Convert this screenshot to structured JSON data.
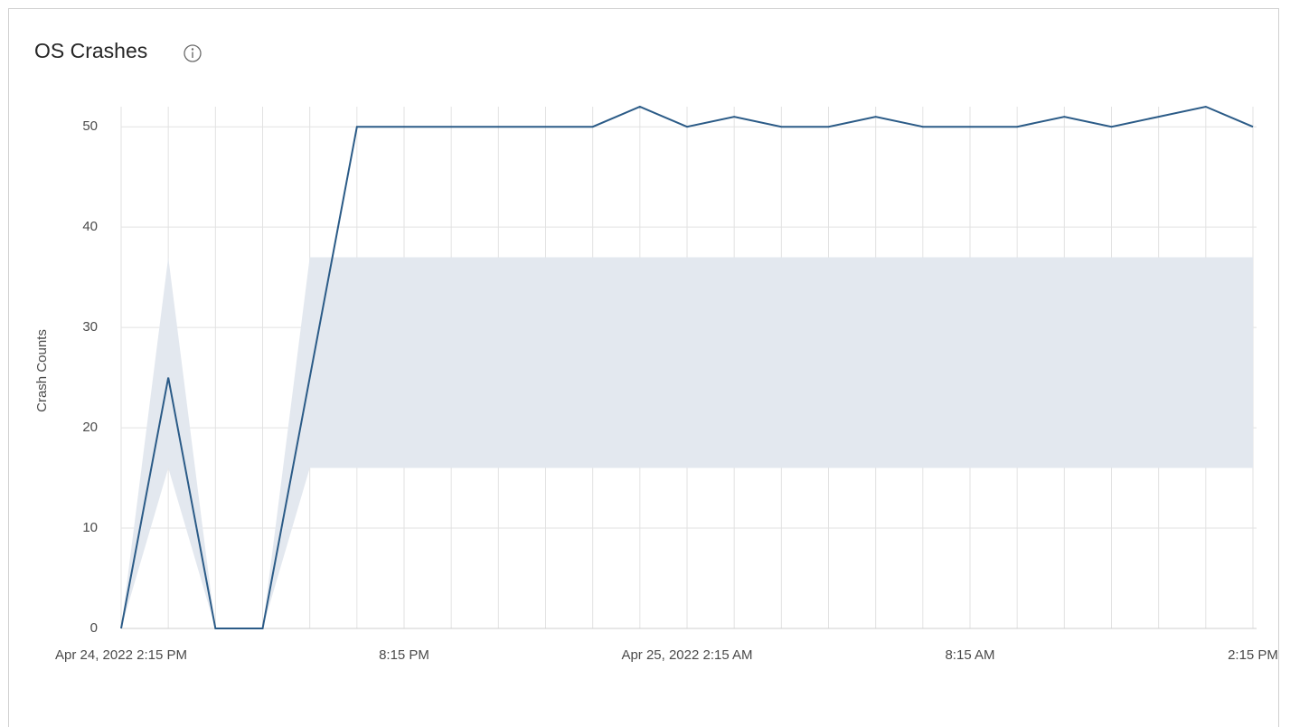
{
  "header": {
    "title": "OS Crashes"
  },
  "chart_data": {
    "type": "line",
    "y_label": "Crash Counts",
    "categories": [
      "Apr 24, 2022 2:15 PM",
      null,
      null,
      null,
      null,
      null,
      "8:15 PM",
      null,
      null,
      null,
      null,
      null,
      "Apr 25, 2022 2:15 AM",
      null,
      null,
      null,
      null,
      null,
      "8:15 AM",
      null,
      null,
      null,
      null,
      null,
      "2:15 PM"
    ],
    "series": [
      {
        "color": "#2b5b87",
        "values": [
          0,
          25,
          0,
          0,
          25,
          50,
          50,
          50,
          50,
          50,
          50,
          52,
          50,
          51,
          50,
          50,
          51,
          50,
          50,
          50,
          51,
          50,
          51,
          52,
          50
        ]
      }
    ],
    "band": {
      "color": "#e3e8ef",
      "lower": [
        0,
        16,
        0,
        0,
        16,
        16,
        16,
        16,
        16,
        16,
        16,
        16,
        16,
        16,
        16,
        16,
        16,
        16,
        16,
        16,
        16,
        16,
        16,
        16,
        16
      ],
      "upper": [
        0,
        37,
        0,
        0,
        37,
        37,
        37,
        37,
        37,
        37,
        37,
        37,
        37,
        37,
        37,
        37,
        37,
        37,
        37,
        37,
        37,
        37,
        37,
        37,
        37
      ]
    },
    "ylim": [
      0,
      52
    ],
    "yticks": [
      0,
      10,
      20,
      30,
      40,
      50
    ],
    "grid": true
  }
}
